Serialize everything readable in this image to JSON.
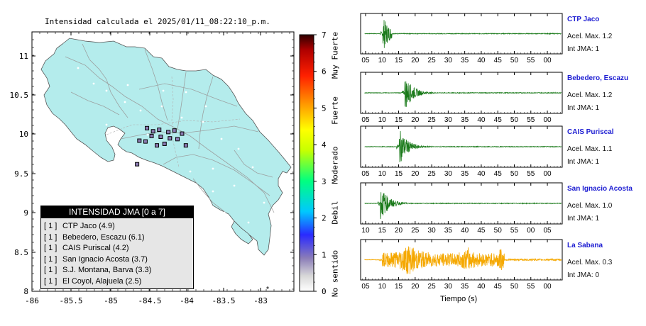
{
  "map": {
    "title": "Intensidad calculada el 2025/01/11_08:22:10_p.m.",
    "x_ticks": [
      "-86",
      "-85.5",
      "-85",
      "-84.5",
      "-84",
      "-83.5",
      "-83"
    ],
    "y_ticks": [
      "11",
      "10.5",
      "10",
      "9.5",
      "9",
      "8.5",
      "8"
    ],
    "land_color": "#b4ecec",
    "stations": [
      {
        "lon": -84.49,
        "lat": 10.08
      },
      {
        "lon": -84.41,
        "lat": 10.04
      },
      {
        "lon": -84.33,
        "lat": 10.06
      },
      {
        "lon": -84.21,
        "lat": 10.03
      },
      {
        "lon": -84.13,
        "lat": 10.05
      },
      {
        "lon": -84.03,
        "lat": 10.01
      },
      {
        "lon": -84.43,
        "lat": 9.98
      },
      {
        "lon": -84.31,
        "lat": 9.97
      },
      {
        "lon": -84.19,
        "lat": 9.95
      },
      {
        "lon": -84.09,
        "lat": 9.94
      },
      {
        "lon": -84.59,
        "lat": 9.92
      },
      {
        "lon": -84.51,
        "lat": 9.91
      },
      {
        "lon": -84.26,
        "lat": 9.88
      },
      {
        "lon": -83.98,
        "lat": 9.86
      },
      {
        "lon": -84.36,
        "lat": 9.86
      },
      {
        "lon": -84.62,
        "lat": 9.62
      }
    ]
  },
  "colorbar": {
    "ticks": [
      "0",
      "1",
      "2",
      "3",
      "4",
      "5",
      "6",
      "7"
    ],
    "labels": [
      "No sentido",
      "Debil",
      "Moderado",
      "Fuerte",
      "Muy Fuerte"
    ]
  },
  "legend": {
    "title": "INTENSIDAD JMA [0 a 7]",
    "items": [
      {
        "level": "[ 1 ]",
        "name": "CTP Jaco (4.9)"
      },
      {
        "level": "[ 1 ]",
        "name": "Bebedero, Escazu (6.1)"
      },
      {
        "level": "[ 1 ]",
        "name": "CAIS Puriscal (4.2)"
      },
      {
        "level": "[ 1 ]",
        "name": "San Ignacio Acosta (3.7)"
      },
      {
        "level": "[ 1 ]",
        "name": "S.J. Montana, Barva (3.3)"
      },
      {
        "level": "[ 1 ]",
        "name": "El Coyol, Alajuela (2.5)"
      }
    ]
  },
  "chart_data": {
    "type": "line",
    "xlabel": "Tiempo (s)",
    "traces": [
      {
        "station": "CTP Jaco",
        "accel": "Acel. Max. 1.2",
        "jma": "Int JMA: 1",
        "color": "#1a7a1a",
        "ticks": [
          "05",
          "10",
          "15",
          "20",
          "25",
          "30",
          "35",
          "40",
          "45",
          "50",
          "55",
          "00"
        ],
        "tick0": 5,
        "onset": 10.2,
        "peak": 1.2,
        "decay": 2.2,
        "end": 13
      },
      {
        "station": "Bebedero, Escazu",
        "accel": "Acel. Max. 1.2",
        "jma": "Int JMA: 1",
        "color": "#1a7a1a",
        "ticks": [
          "05",
          "10",
          "15",
          "20",
          "25",
          "30",
          "35",
          "40",
          "45",
          "50",
          "55",
          "00"
        ],
        "tick0": 5,
        "onset": 16.8,
        "peak": 1.2,
        "decay": 2.5,
        "end": 28
      },
      {
        "station": "CAIS Puriscal",
        "accel": "Acel. Max. 1.1",
        "jma": "Int JMA: 1",
        "color": "#1a7a1a",
        "ticks": [
          "05",
          "10",
          "15",
          "20",
          "25",
          "30",
          "35",
          "40",
          "45",
          "50",
          "55",
          "00"
        ],
        "tick0": 5,
        "onset": 15.2,
        "peak": 1.1,
        "decay": 2.5,
        "end": 27
      },
      {
        "station": "San Ignacio Acosta",
        "accel": "Acel. Max. 1.0",
        "jma": "Int JMA: 1",
        "color": "#1a7a1a",
        "ticks": [
          "10",
          "15",
          "20",
          "25",
          "30",
          "35",
          "40",
          "45",
          "50",
          "55",
          "00",
          "05"
        ],
        "tick0": 10,
        "onset": 14.5,
        "peak": 1.0,
        "decay": 2.4,
        "end": 25
      },
      {
        "station": "La Sabana",
        "accel": "Acel. Max. 0.3",
        "jma": "Int JMA: 0",
        "color": "#f5a800",
        "ticks": [
          "05",
          "10",
          "15",
          "20",
          "25",
          "30",
          "35",
          "40",
          "45",
          "50",
          "55",
          "00"
        ],
        "tick0": 5,
        "onset": 10.0,
        "peak": 0.3,
        "decay": 18,
        "end": 47
      }
    ]
  }
}
